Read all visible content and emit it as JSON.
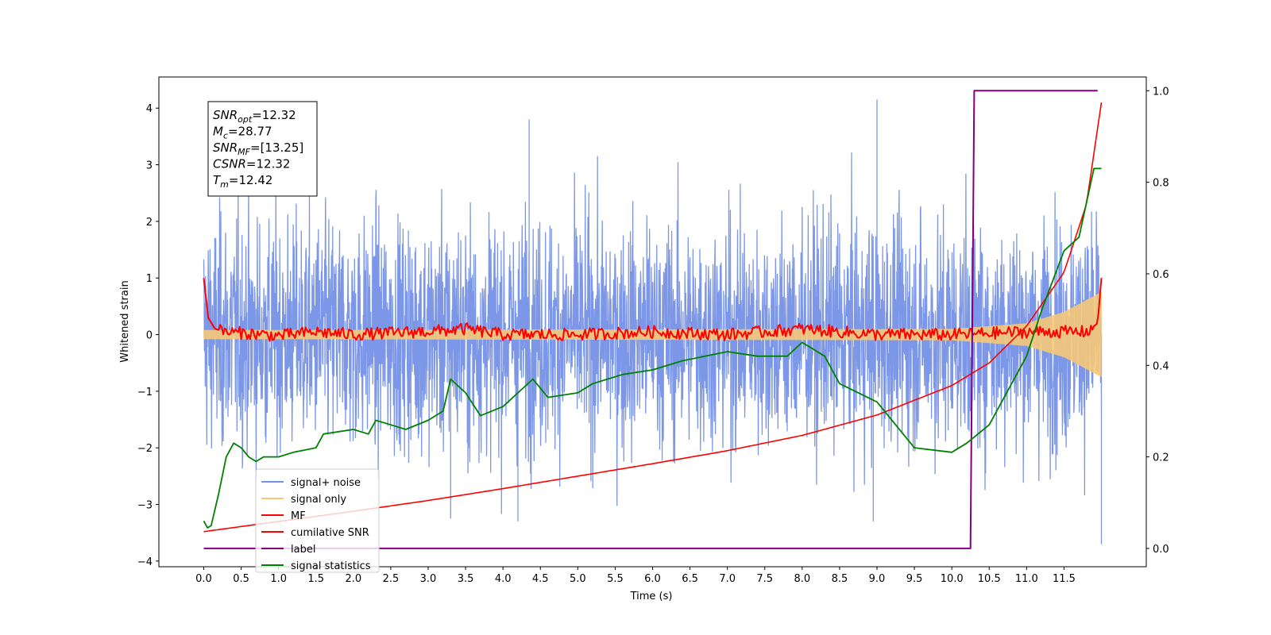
{
  "chart_data": {
    "type": "line",
    "xlabel": "Time (s)",
    "ylabel": "Whitened strain",
    "ylabel_right": "",
    "xlim": [
      -0.6,
      12.6
    ],
    "ylim": [
      -4.1,
      4.55
    ],
    "ylim_right": [
      -0.04,
      1.03
    ],
    "x_ticks": [
      "0.0",
      "0.5",
      "1.0",
      "1.5",
      "2.0",
      "2.5",
      "3.0",
      "3.5",
      "4.0",
      "4.5",
      "5.0",
      "5.5",
      "6.0",
      "6.5",
      "7.0",
      "7.5",
      "8.0",
      "8.5",
      "9.0",
      "9.5",
      "10.0",
      "10.5",
      "11.0",
      "11.5"
    ],
    "y_ticks": [
      "4",
      "3",
      "2",
      "1",
      "0",
      "−1",
      "−2",
      "−3",
      "−4"
    ],
    "y_tick_values": [
      4,
      3,
      2,
      1,
      0,
      -1,
      -2,
      -3,
      -4
    ],
    "y_right_ticks": [
      "1.0",
      "0.8",
      "0.6",
      "0.4",
      "0.2",
      "0.0"
    ],
    "y_right_tick_values": [
      1.0,
      0.8,
      0.6,
      0.4,
      0.2,
      0.0
    ],
    "grid": false,
    "legend_position": "lower-left",
    "annotation": [
      {
        "name": "SNR",
        "sub": "opt",
        "value": "=12.32"
      },
      {
        "name": "M",
        "sub": "c",
        "value": "=28.77"
      },
      {
        "name": "SNR",
        "sub": "MF",
        "value": "=[13.25]"
      },
      {
        "name": "CSNR",
        "sub": "",
        "value": "=12.32"
      },
      {
        "name": "T",
        "sub": "m",
        "value": "=12.42"
      }
    ],
    "series": [
      {
        "name": "signal+ noise",
        "color": "#7591e6",
        "axis": "left",
        "x_range": [
          0,
          12
        ],
        "approx_range": [
          -3.7,
          4.2
        ],
        "peaks": [
          [
            4.35,
            3.8
          ],
          [
            9.0,
            4.15
          ],
          [
            3.3,
            -3.25
          ],
          [
            4.2,
            -3.3
          ],
          [
            8.95,
            -3.3
          ],
          [
            12.0,
            -3.7
          ]
        ]
      },
      {
        "name": "signal only",
        "color": "#f5c878",
        "axis": "left",
        "x_range": [
          0,
          12
        ],
        "amplitude": [
          [
            0,
            0.08
          ],
          [
            10.0,
            0.1
          ],
          [
            11.0,
            0.2
          ],
          [
            11.5,
            0.4
          ],
          [
            12.0,
            0.75
          ]
        ]
      },
      {
        "name": "MF",
        "color": "#ff0000",
        "axis": "left",
        "points": [
          [
            0,
            1.0
          ],
          [
            0.06,
            0.3
          ],
          [
            0.15,
            0.1
          ],
          [
            0.3,
            0.05
          ],
          [
            1.0,
            -0.02
          ],
          [
            1.5,
            0.05
          ],
          [
            2.0,
            0.0
          ],
          [
            3.2,
            0.07
          ],
          [
            3.5,
            0.1
          ],
          [
            4.0,
            0.0
          ],
          [
            5.0,
            0.0
          ],
          [
            6.0,
            0.05
          ],
          [
            7.0,
            0.0
          ],
          [
            8.0,
            0.1
          ],
          [
            9.0,
            0.0
          ],
          [
            10.0,
            0.0
          ],
          [
            11.0,
            0.05
          ],
          [
            11.8,
            0.05
          ],
          [
            11.95,
            0.2
          ],
          [
            12.0,
            1.0
          ]
        ]
      },
      {
        "name": "cumilative SNR",
        "color": "#ff0000",
        "axis": "left",
        "points": [
          [
            0,
            -3.48
          ],
          [
            1,
            -3.3
          ],
          [
            2,
            -3.12
          ],
          [
            3,
            -2.93
          ],
          [
            4,
            -2.72
          ],
          [
            5,
            -2.5
          ],
          [
            6,
            -2.28
          ],
          [
            7,
            -2.05
          ],
          [
            8,
            -1.78
          ],
          [
            9,
            -1.42
          ],
          [
            10,
            -0.9
          ],
          [
            10.5,
            -0.5
          ],
          [
            11.0,
            0.15
          ],
          [
            11.5,
            1.1
          ],
          [
            11.8,
            2.3
          ],
          [
            12.0,
            4.1
          ]
        ]
      },
      {
        "name": "label",
        "color": "#800080",
        "axis": "right",
        "points": [
          [
            0,
            0.0
          ],
          [
            10.25,
            0.0
          ],
          [
            10.3,
            1.0
          ],
          [
            11.95,
            1.0
          ]
        ]
      },
      {
        "name": "signal statistics",
        "color": "#008000",
        "axis": "right",
        "points": [
          [
            0,
            0.06
          ],
          [
            0.05,
            0.045
          ],
          [
            0.1,
            0.05
          ],
          [
            0.2,
            0.12
          ],
          [
            0.3,
            0.2
          ],
          [
            0.4,
            0.23
          ],
          [
            0.5,
            0.22
          ],
          [
            0.6,
            0.2
          ],
          [
            0.7,
            0.19
          ],
          [
            0.8,
            0.2
          ],
          [
            1.0,
            0.2
          ],
          [
            1.2,
            0.21
          ],
          [
            1.5,
            0.22
          ],
          [
            1.6,
            0.25
          ],
          [
            2.0,
            0.26
          ],
          [
            2.2,
            0.25
          ],
          [
            2.3,
            0.28
          ],
          [
            2.5,
            0.27
          ],
          [
            2.7,
            0.26
          ],
          [
            3.0,
            0.28
          ],
          [
            3.2,
            0.3
          ],
          [
            3.3,
            0.37
          ],
          [
            3.5,
            0.34
          ],
          [
            3.7,
            0.29
          ],
          [
            4.0,
            0.31
          ],
          [
            4.2,
            0.34
          ],
          [
            4.4,
            0.37
          ],
          [
            4.6,
            0.33
          ],
          [
            5.0,
            0.34
          ],
          [
            5.2,
            0.36
          ],
          [
            5.6,
            0.38
          ],
          [
            6.0,
            0.39
          ],
          [
            6.4,
            0.41
          ],
          [
            7.0,
            0.43
          ],
          [
            7.4,
            0.42
          ],
          [
            7.8,
            0.42
          ],
          [
            8.0,
            0.45
          ],
          [
            8.3,
            0.42
          ],
          [
            8.5,
            0.36
          ],
          [
            9.0,
            0.32
          ],
          [
            9.5,
            0.22
          ],
          [
            10.0,
            0.21
          ],
          [
            10.2,
            0.23
          ],
          [
            10.5,
            0.27
          ],
          [
            10.7,
            0.33
          ],
          [
            11.0,
            0.42
          ],
          [
            11.2,
            0.52
          ],
          [
            11.5,
            0.65
          ],
          [
            11.7,
            0.68
          ],
          [
            11.9,
            0.83
          ],
          [
            12.0,
            0.83
          ]
        ]
      }
    ]
  }
}
